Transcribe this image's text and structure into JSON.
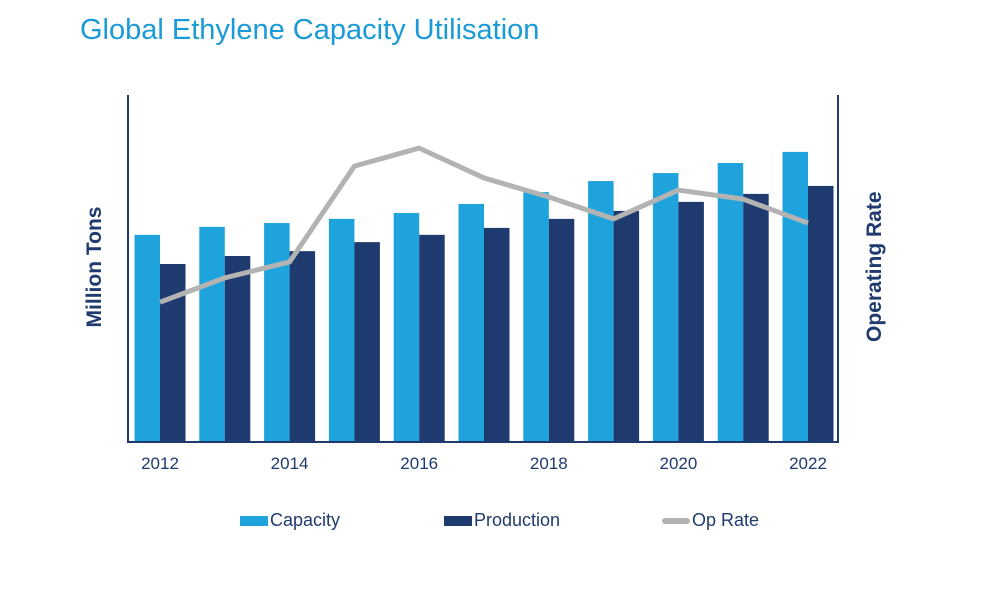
{
  "chart_data": {
    "type": "bar",
    "title": "Global Ethylene Capacity Utilisation",
    "ylabel": "Million Tons",
    "y2label": "Operating Rate",
    "categories": [
      "2012",
      "2013",
      "2014",
      "2015",
      "2016",
      "2017",
      "2018",
      "2019",
      "2020",
      "2021",
      "2022"
    ],
    "tick_labels": [
      "2012",
      "2014",
      "2016",
      "2018",
      "2020",
      "2022"
    ],
    "ylim": [
      0,
      100
    ],
    "y2lim": [
      0,
      100
    ],
    "grid": false,
    "legend_position": "bottom",
    "series": [
      {
        "name": "Capacity",
        "type": "bar",
        "color": "#1ea3dc",
        "values": [
          59.7,
          62,
          63.1,
          64.3,
          66,
          68.6,
          72,
          75.2,
          77.5,
          80.4,
          83.6
        ]
      },
      {
        "name": "Production",
        "type": "bar",
        "color": "#1f3a6e",
        "values": [
          51.3,
          53.6,
          55,
          57.6,
          59.7,
          61.7,
          64.3,
          66.6,
          69.2,
          71.5,
          73.8
        ]
      },
      {
        "name": "Op Rate",
        "type": "line",
        "axis": "right",
        "color": "#b3b3b3",
        "values": [
          40.3,
          47.3,
          51.9,
          79.5,
          84.7,
          76.1,
          70.6,
          64.3,
          72.6,
          70,
          63.1
        ]
      }
    ]
  }
}
